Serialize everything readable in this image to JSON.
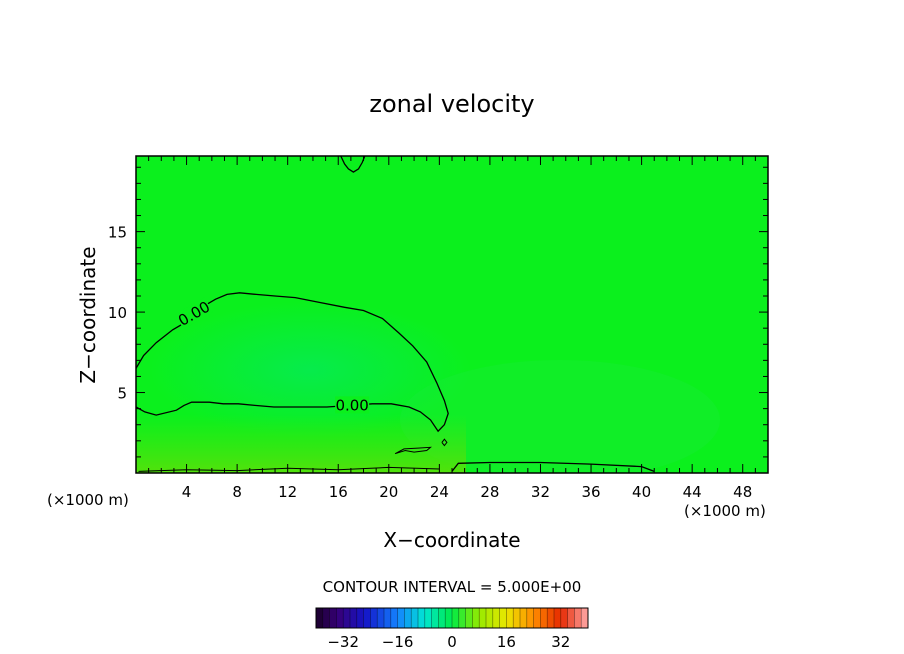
{
  "chart_data": {
    "type": "heatmap",
    "title": "zonal velocity",
    "xlabel": "X−coordinate",
    "ylabel": "Z−coordinate",
    "x_unit_left": "(×1000 m)",
    "x_unit_right": "(×1000 m)",
    "xlim": [
      0,
      50
    ],
    "ylim": [
      0,
      19.7
    ],
    "x_ticks": [
      4,
      8,
      12,
      16,
      20,
      24,
      28,
      32,
      36,
      40,
      44,
      48
    ],
    "x_tick_labels": [
      "4",
      "8",
      "12",
      "16",
      "20",
      "24",
      "28",
      "32",
      "36",
      "40",
      "44",
      "48"
    ],
    "y_ticks": [
      5,
      10,
      15
    ],
    "y_tick_labels": [
      "5",
      "10",
      "15"
    ],
    "contour_interval_text": "CONTOUR INTERVAL = 5.000E+00",
    "contour_labels": [
      "0.00",
      "0.00"
    ],
    "colorbar": {
      "range": [
        -40,
        40
      ],
      "ticks": [
        -32,
        -16,
        0,
        16,
        32
      ],
      "tick_labels": [
        "−32",
        "−16",
        "0",
        "16",
        "32"
      ]
    },
    "contours": [
      {
        "value": 0,
        "label": "0.00",
        "points": [
          [
            0,
            6.5
          ],
          [
            0.6,
            7.3
          ],
          [
            1.6,
            8.1
          ],
          [
            2.9,
            8.9
          ],
          [
            4.0,
            9.4
          ],
          [
            5.2,
            10.3
          ],
          [
            6.3,
            10.8
          ],
          [
            7.2,
            11.1
          ],
          [
            8.2,
            11.2
          ],
          [
            9.5,
            11.1
          ],
          [
            11.0,
            11.0
          ],
          [
            12.6,
            10.9
          ],
          [
            14.5,
            10.6
          ],
          [
            16.5,
            10.3
          ],
          [
            18.0,
            10.1
          ],
          [
            19.5,
            9.6
          ],
          [
            20.8,
            8.7
          ],
          [
            21.9,
            7.9
          ],
          [
            23.0,
            6.9
          ],
          [
            23.8,
            5.6
          ],
          [
            24.4,
            4.5
          ],
          [
            24.7,
            3.7
          ],
          [
            24.4,
            3.0
          ],
          [
            23.9,
            2.6
          ],
          [
            23.3,
            3.3
          ],
          [
            22.5,
            3.8
          ],
          [
            21.6,
            4.1
          ],
          [
            20.2,
            4.3
          ],
          [
            18.7,
            4.3
          ],
          [
            17.0,
            4.2
          ],
          [
            15.1,
            4.1
          ],
          [
            12.8,
            4.1
          ],
          [
            10.9,
            4.1
          ],
          [
            9.4,
            4.2
          ],
          [
            8.1,
            4.3
          ],
          [
            6.9,
            4.3
          ],
          [
            5.8,
            4.4
          ],
          [
            4.4,
            4.4
          ],
          [
            3.8,
            4.2
          ],
          [
            3.2,
            3.9
          ],
          [
            1.6,
            3.6
          ],
          [
            0.7,
            3.8
          ],
          [
            0,
            4.1
          ]
        ]
      },
      {
        "value": 0,
        "points": [
          [
            16.2,
            19.7
          ],
          [
            16.5,
            19.2
          ],
          [
            16.8,
            18.9
          ],
          [
            17.2,
            18.7
          ],
          [
            17.6,
            18.9
          ],
          [
            17.9,
            19.3
          ],
          [
            18.1,
            19.7
          ]
        ]
      },
      {
        "value": 0,
        "points": [
          [
            25.0,
            0.1
          ],
          [
            25.5,
            0.6
          ],
          [
            28,
            0.65
          ],
          [
            32,
            0.65
          ],
          [
            36,
            0.55
          ],
          [
            40,
            0.4
          ],
          [
            41,
            0.1
          ]
        ]
      },
      {
        "value": 0,
        "points": [
          [
            0.2,
            0.1
          ],
          [
            4,
            0.2
          ],
          [
            8,
            0.15
          ],
          [
            12,
            0.3
          ],
          [
            16,
            0.2
          ],
          [
            20,
            0.35
          ],
          [
            24,
            0.25
          ]
        ]
      },
      {
        "value": 0,
        "points": [
          [
            20.5,
            1.2
          ],
          [
            21.3,
            1.4
          ],
          [
            22.0,
            1.3
          ],
          [
            23.0,
            1.4
          ],
          [
            23.3,
            1.6
          ],
          [
            22.3,
            1.55
          ],
          [
            21.2,
            1.5
          ],
          [
            20.5,
            1.2
          ]
        ]
      },
      {
        "value": 0,
        "points": [
          [
            24.2,
            1.9
          ],
          [
            24.4,
            2.1
          ],
          [
            24.6,
            1.9
          ],
          [
            24.4,
            1.7
          ],
          [
            24.2,
            1.9
          ]
        ]
      }
    ]
  }
}
